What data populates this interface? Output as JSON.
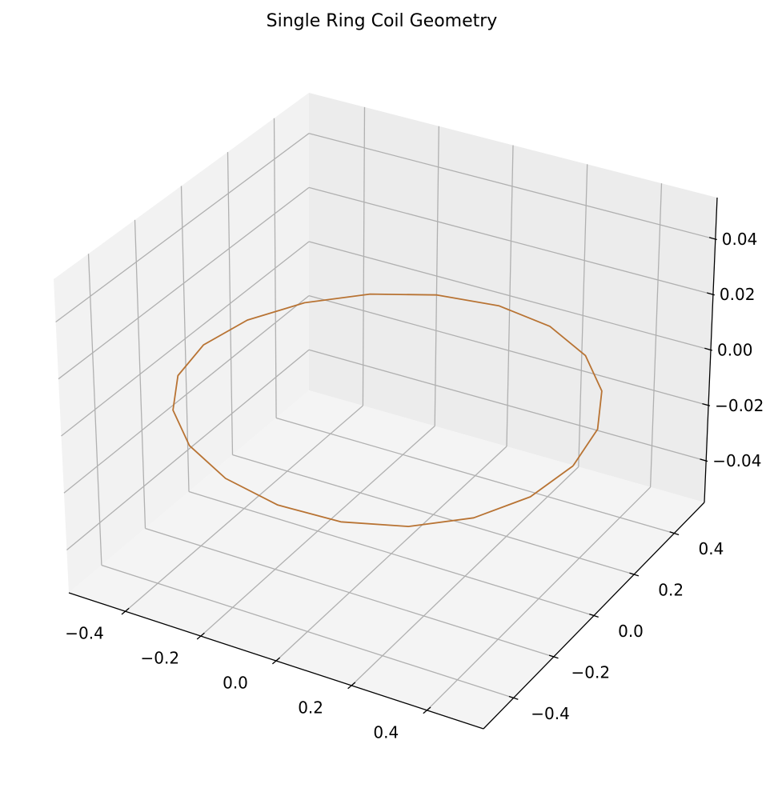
{
  "chart_data": {
    "type": "line",
    "projection": "3d",
    "title": "Single Ring Coil Geometry",
    "xlabel": "",
    "ylabel": "",
    "zlabel": "",
    "xlim": [
      -0.55,
      0.55
    ],
    "ylim": [
      -0.55,
      0.55
    ],
    "zlim": [
      -0.055,
      0.055
    ],
    "x_ticks": [
      -0.4,
      -0.2,
      0.0,
      0.2,
      0.4
    ],
    "y_ticks": [
      -0.4,
      -0.2,
      0.0,
      0.2,
      0.4
    ],
    "z_ticks": [
      -0.04,
      -0.02,
      0.0,
      0.02,
      0.04
    ],
    "x_tick_labels": [
      "−0.4",
      "−0.2",
      "0.0",
      "0.2",
      "0.4"
    ],
    "y_tick_labels": [
      "−0.4",
      "−0.2",
      "0.0",
      "0.2",
      "0.4"
    ],
    "z_tick_labels": [
      "−0.04",
      "−0.02",
      "0.00",
      "0.02",
      "0.04"
    ],
    "grid": true,
    "colors": {
      "line": "#b87333",
      "pane_left": "#f2f2f2",
      "pane_right": "#ececec",
      "pane_floor": "#f4f4f4",
      "grid": "#b0b0b0",
      "axis": "#000000"
    },
    "series": [
      {
        "shape": "circle",
        "center": [
          0.0,
          0.0,
          0.0
        ],
        "radius": 0.5,
        "segments": 20,
        "x": [
          0.5,
          0.4755,
          0.4045,
          0.2939,
          0.1545,
          0.0,
          -0.1545,
          -0.2939,
          -0.4045,
          -0.4755,
          -0.5,
          -0.4755,
          -0.4045,
          -0.2939,
          -0.1545,
          0.0,
          0.1545,
          0.2939,
          0.4045,
          0.4755,
          0.5
        ],
        "y": [
          0.0,
          0.1545,
          0.2939,
          0.4045,
          0.4755,
          0.5,
          0.4755,
          0.4045,
          0.2939,
          0.1545,
          0.0,
          -0.1545,
          -0.2939,
          -0.4045,
          -0.4755,
          -0.5,
          -0.4755,
          -0.4045,
          -0.2939,
          -0.1545,
          0.0
        ],
        "z": [
          0,
          0,
          0,
          0,
          0,
          0,
          0,
          0,
          0,
          0,
          0,
          0,
          0,
          0,
          0,
          0,
          0,
          0,
          0,
          0,
          0
        ]
      }
    ]
  }
}
